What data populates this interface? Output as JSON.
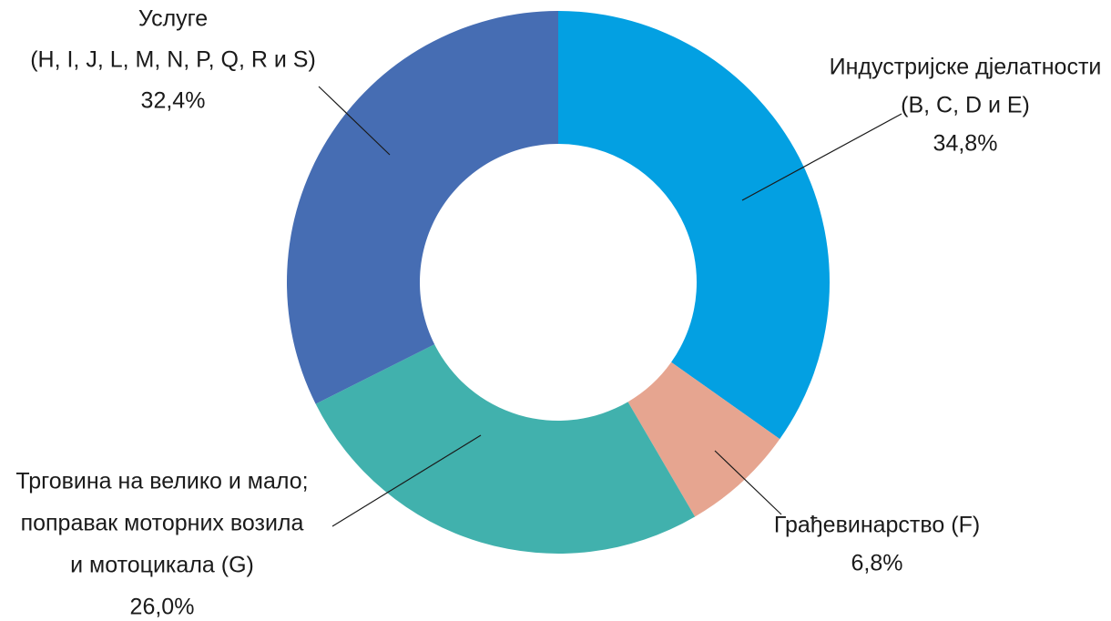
{
  "chart_data": {
    "type": "donut",
    "categories": [
      [
        "Индустријске дјелатности",
        "(B, C, D и E)"
      ],
      [
        "Грађевинарство (F)"
      ],
      [
        "Трговина на велико и мало;",
        "поправак моторних возила",
        "и мотоцикала (G)"
      ],
      [
        "Услуге",
        "(H, I, J, L, M, N, P, Q, R и S)"
      ]
    ],
    "values": [
      34.8,
      6.8,
      26.0,
      32.4
    ],
    "value_labels": [
      "34,8%",
      "6,8%",
      "26,0%",
      "32,4%"
    ],
    "colors": [
      "#03a0e2",
      "#e6a590",
      "#41b1ad",
      "#466db3"
    ]
  }
}
